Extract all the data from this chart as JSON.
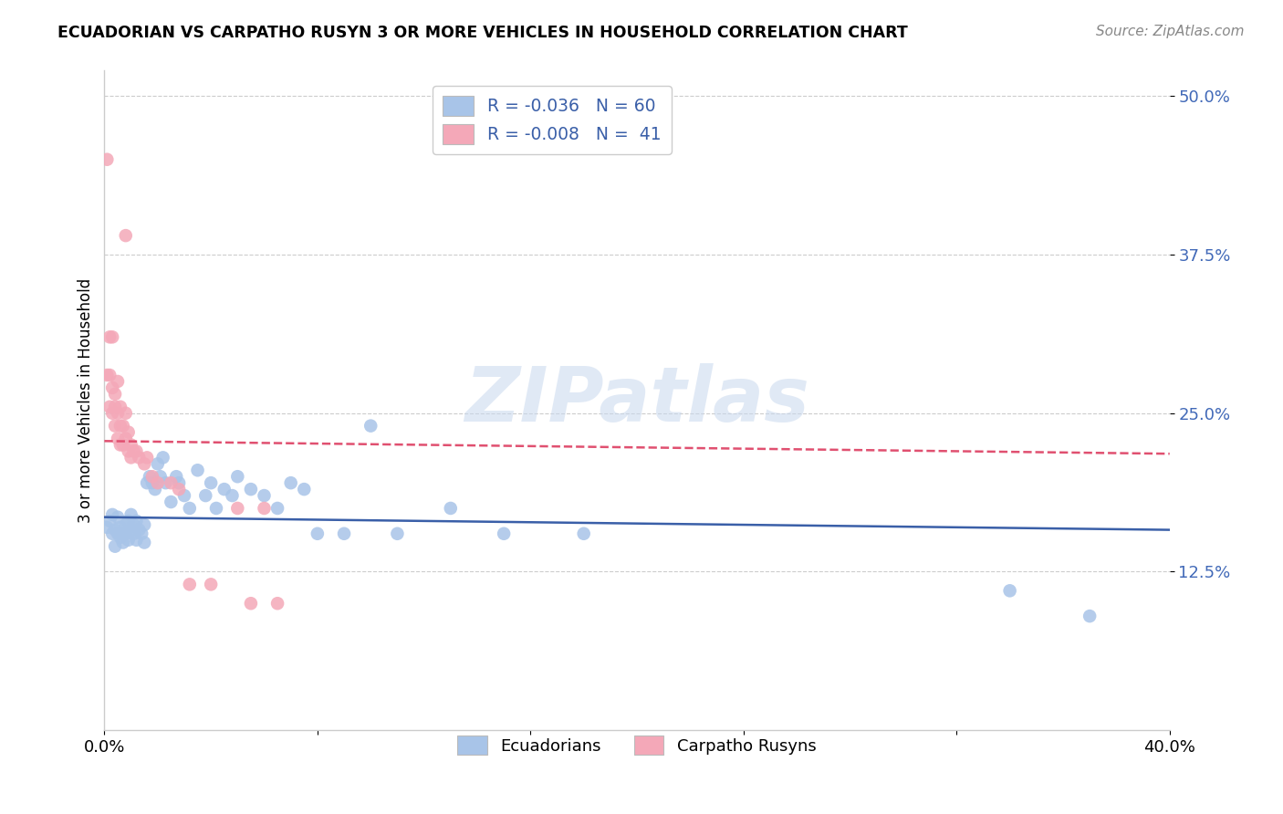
{
  "title": "ECUADORIAN VS CARPATHO RUSYN 3 OR MORE VEHICLES IN HOUSEHOLD CORRELATION CHART",
  "source": "Source: ZipAtlas.com",
  "ylabel": "3 or more Vehicles in Household",
  "xlim": [
    0.0,
    0.4
  ],
  "ylim": [
    0.0,
    0.52
  ],
  "yticks": [
    0.125,
    0.25,
    0.375,
    0.5
  ],
  "ytick_labels": [
    "12.5%",
    "25.0%",
    "37.5%",
    "50.0%"
  ],
  "xticks": [
    0.0,
    0.08,
    0.16,
    0.24,
    0.32,
    0.4
  ],
  "xtick_labels": [
    "0.0%",
    "",
    "",
    "",
    "",
    "40.0%"
  ],
  "watermark": "ZIPatlas",
  "blue_color": "#a8c4e8",
  "pink_color": "#f4a8b8",
  "blue_line_color": "#3a5fa8",
  "pink_line_color": "#e05070",
  "ecuadorians_x": [
    0.001,
    0.002,
    0.003,
    0.003,
    0.004,
    0.004,
    0.005,
    0.005,
    0.006,
    0.006,
    0.007,
    0.007,
    0.008,
    0.008,
    0.009,
    0.009,
    0.01,
    0.01,
    0.011,
    0.011,
    0.012,
    0.012,
    0.013,
    0.014,
    0.015,
    0.015,
    0.016,
    0.017,
    0.018,
    0.019,
    0.02,
    0.021,
    0.022,
    0.023,
    0.025,
    0.027,
    0.028,
    0.03,
    0.032,
    0.035,
    0.038,
    0.04,
    0.042,
    0.045,
    0.048,
    0.05,
    0.055,
    0.06,
    0.065,
    0.07,
    0.075,
    0.08,
    0.09,
    0.1,
    0.11,
    0.13,
    0.15,
    0.18,
    0.34,
    0.37
  ],
  "ecuadorians_y": [
    0.16,
    0.165,
    0.155,
    0.17,
    0.158,
    0.145,
    0.155,
    0.168,
    0.152,
    0.16,
    0.155,
    0.148,
    0.162,
    0.155,
    0.15,
    0.165,
    0.158,
    0.17,
    0.155,
    0.162,
    0.15,
    0.165,
    0.158,
    0.155,
    0.162,
    0.148,
    0.195,
    0.2,
    0.195,
    0.19,
    0.21,
    0.2,
    0.215,
    0.195,
    0.18,
    0.2,
    0.195,
    0.185,
    0.175,
    0.205,
    0.185,
    0.195,
    0.175,
    0.19,
    0.185,
    0.2,
    0.19,
    0.185,
    0.175,
    0.195,
    0.19,
    0.155,
    0.155,
    0.24,
    0.155,
    0.175,
    0.155,
    0.155,
    0.11,
    0.09
  ],
  "carpatho_rusyns_x": [
    0.001,
    0.001,
    0.002,
    0.002,
    0.002,
    0.003,
    0.003,
    0.003,
    0.004,
    0.004,
    0.004,
    0.005,
    0.005,
    0.005,
    0.006,
    0.006,
    0.006,
    0.007,
    0.007,
    0.008,
    0.008,
    0.008,
    0.009,
    0.009,
    0.01,
    0.01,
    0.011,
    0.012,
    0.013,
    0.015,
    0.016,
    0.018,
    0.02,
    0.025,
    0.028,
    0.032,
    0.04,
    0.05,
    0.055,
    0.06,
    0.065
  ],
  "carpatho_rusyns_y": [
    0.45,
    0.28,
    0.31,
    0.28,
    0.255,
    0.31,
    0.27,
    0.25,
    0.255,
    0.265,
    0.24,
    0.275,
    0.25,
    0.23,
    0.255,
    0.24,
    0.225,
    0.24,
    0.225,
    0.39,
    0.25,
    0.23,
    0.235,
    0.22,
    0.225,
    0.215,
    0.22,
    0.22,
    0.215,
    0.21,
    0.215,
    0.2,
    0.195,
    0.195,
    0.19,
    0.115,
    0.115,
    0.175,
    0.1,
    0.175,
    0.1
  ],
  "blue_trend_x": [
    0.0,
    0.4
  ],
  "blue_trend_y": [
    0.168,
    0.158
  ],
  "pink_trend_x": [
    0.0,
    0.4
  ],
  "pink_trend_y": [
    0.228,
    0.218
  ]
}
